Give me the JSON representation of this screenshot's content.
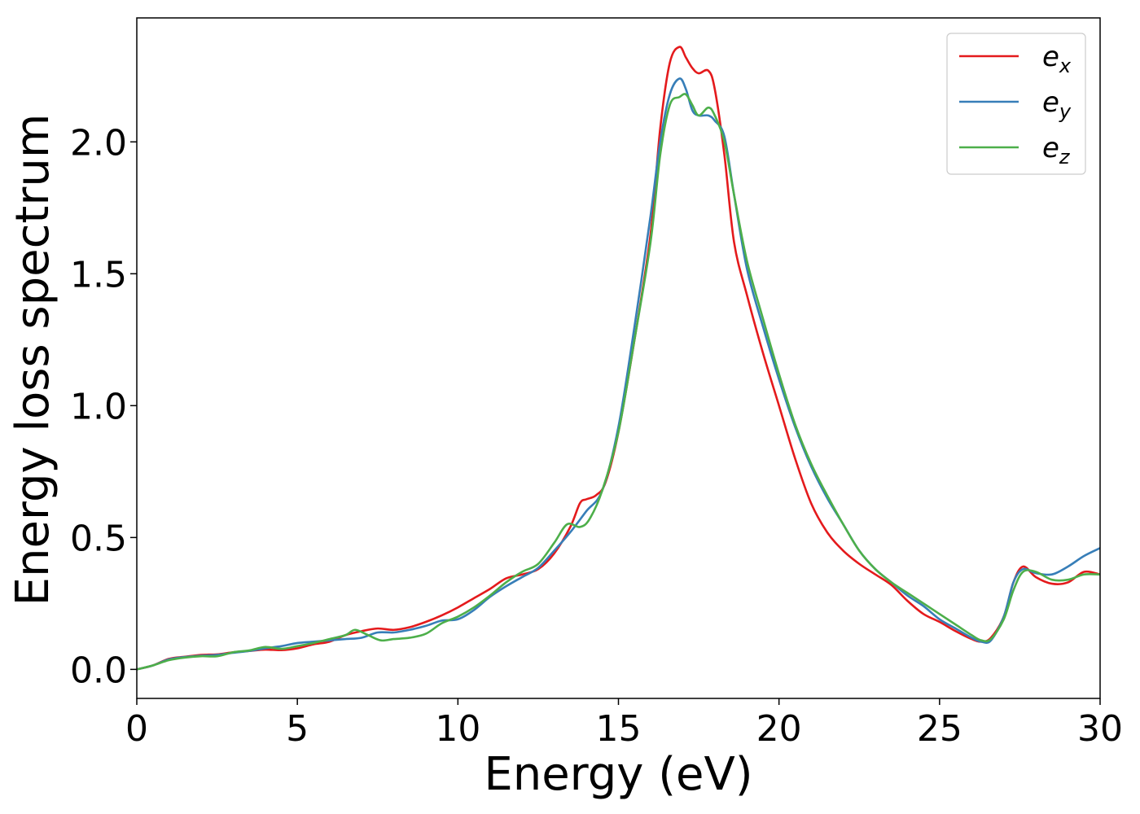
{
  "chart_data": {
    "type": "line",
    "xlabel": "Energy (eV)",
    "ylabel": "Energy loss spectrum",
    "xlim": [
      0,
      30
    ],
    "ylim": [
      -0.11,
      2.47
    ],
    "xticks": [
      0,
      5,
      10,
      15,
      20,
      25,
      30
    ],
    "xtick_labels": [
      "0",
      "5",
      "10",
      "15",
      "20",
      "25",
      "30"
    ],
    "yticks": [
      0.0,
      0.5,
      1.0,
      1.5,
      2.0
    ],
    "ytick_labels": [
      "0.0",
      "0.5",
      "1.0",
      "1.5",
      "2.0"
    ],
    "grid": false,
    "legend_position": "top-right",
    "series": [
      {
        "name": "e",
        "subscript": "x",
        "color": "#e41a1c",
        "x": [
          0,
          0.5,
          1,
          1.5,
          2,
          2.5,
          3,
          3.5,
          4,
          4.5,
          5,
          5.5,
          6,
          6.5,
          7,
          7.5,
          8,
          8.5,
          9,
          9.5,
          10,
          10.5,
          11,
          11.5,
          12,
          12.5,
          13,
          13.5,
          13.8,
          14,
          14.3,
          14.6,
          15,
          15.5,
          16,
          16.3,
          16.6,
          16.9,
          17.1,
          17.3,
          17.5,
          17.8,
          18,
          18.3,
          18.6,
          19,
          19.5,
          20,
          20.5,
          21,
          21.5,
          22,
          22.5,
          23,
          23.5,
          24,
          24.5,
          25,
          25.5,
          26,
          26.3,
          26.6,
          27,
          27.3,
          27.6,
          28,
          28.5,
          29,
          29.5,
          30
        ],
        "y": [
          0.0,
          0.015,
          0.04,
          0.048,
          0.055,
          0.057,
          0.065,
          0.07,
          0.075,
          0.073,
          0.08,
          0.095,
          0.105,
          0.13,
          0.145,
          0.155,
          0.15,
          0.16,
          0.18,
          0.205,
          0.235,
          0.27,
          0.305,
          0.345,
          0.36,
          0.38,
          0.44,
          0.54,
          0.63,
          0.645,
          0.66,
          0.71,
          0.9,
          1.25,
          1.65,
          2.05,
          2.3,
          2.36,
          2.32,
          2.28,
          2.26,
          2.27,
          2.2,
          1.95,
          1.62,
          1.42,
          1.2,
          1.0,
          0.8,
          0.63,
          0.52,
          0.45,
          0.4,
          0.36,
          0.32,
          0.26,
          0.21,
          0.18,
          0.145,
          0.115,
          0.105,
          0.12,
          0.2,
          0.33,
          0.39,
          0.35,
          0.325,
          0.33,
          0.37,
          0.36
        ]
      },
      {
        "name": "e",
        "subscript": "y",
        "color": "#377eb8",
        "x": [
          0,
          0.5,
          1,
          1.5,
          2,
          2.5,
          3,
          3.5,
          4,
          4.5,
          5,
          5.5,
          6,
          6.5,
          7,
          7.5,
          8,
          8.5,
          9,
          9.5,
          10,
          10.5,
          11,
          11.5,
          12,
          12.5,
          13,
          13.5,
          14,
          14.5,
          15,
          15.5,
          16,
          16.3,
          16.6,
          16.9,
          17.1,
          17.3,
          17.5,
          17.8,
          18,
          18.3,
          18.6,
          19,
          19.5,
          20,
          20.5,
          21,
          21.5,
          22,
          22.5,
          23,
          23.5,
          24,
          24.5,
          25,
          25.5,
          26,
          26.3,
          26.6,
          27,
          27.3,
          27.6,
          28,
          28.5,
          29,
          29.5,
          30
        ],
        "y": [
          0.0,
          0.015,
          0.038,
          0.047,
          0.052,
          0.055,
          0.063,
          0.07,
          0.08,
          0.088,
          0.1,
          0.105,
          0.11,
          0.115,
          0.12,
          0.14,
          0.14,
          0.15,
          0.165,
          0.185,
          0.19,
          0.225,
          0.275,
          0.315,
          0.35,
          0.385,
          0.45,
          0.52,
          0.6,
          0.68,
          0.92,
          1.3,
          1.72,
          2.0,
          2.18,
          2.24,
          2.2,
          2.12,
          2.1,
          2.1,
          2.08,
          2.02,
          1.8,
          1.52,
          1.3,
          1.1,
          0.92,
          0.77,
          0.65,
          0.55,
          0.45,
          0.38,
          0.33,
          0.28,
          0.24,
          0.19,
          0.155,
          0.12,
          0.105,
          0.11,
          0.2,
          0.33,
          0.38,
          0.365,
          0.36,
          0.39,
          0.43,
          0.46
        ]
      },
      {
        "name": "e",
        "subscript": "z",
        "color": "#4daf4a",
        "x": [
          0,
          0.5,
          1,
          1.5,
          2,
          2.5,
          3,
          3.5,
          4,
          4.5,
          5,
          5.5,
          6,
          6.5,
          6.8,
          7.2,
          7.6,
          8,
          8.5,
          9,
          9.5,
          10,
          10.5,
          11,
          11.5,
          12,
          12.5,
          13,
          13.4,
          13.8,
          14.1,
          14.5,
          15,
          15.5,
          16,
          16.3,
          16.6,
          16.9,
          17.1,
          17.3,
          17.5,
          17.8,
          18,
          18.3,
          18.6,
          19,
          19.5,
          20,
          20.5,
          21,
          21.5,
          22,
          22.5,
          23,
          23.5,
          24,
          24.5,
          25,
          25.5,
          26,
          26.3,
          26.6,
          27,
          27.3,
          27.6,
          28,
          28.5,
          29,
          29.5,
          30
        ],
        "y": [
          0.0,
          0.015,
          0.035,
          0.045,
          0.05,
          0.05,
          0.065,
          0.072,
          0.085,
          0.078,
          0.088,
          0.1,
          0.115,
          0.13,
          0.15,
          0.13,
          0.11,
          0.115,
          0.12,
          0.135,
          0.175,
          0.2,
          0.235,
          0.28,
          0.33,
          0.37,
          0.4,
          0.48,
          0.55,
          0.54,
          0.57,
          0.68,
          0.9,
          1.25,
          1.62,
          1.95,
          2.14,
          2.17,
          2.18,
          2.14,
          2.1,
          2.13,
          2.1,
          2.0,
          1.8,
          1.55,
          1.33,
          1.12,
          0.93,
          0.78,
          0.66,
          0.55,
          0.45,
          0.38,
          0.33,
          0.29,
          0.25,
          0.21,
          0.17,
          0.13,
          0.11,
          0.115,
          0.19,
          0.3,
          0.37,
          0.37,
          0.34,
          0.34,
          0.36,
          0.36
        ]
      }
    ]
  }
}
